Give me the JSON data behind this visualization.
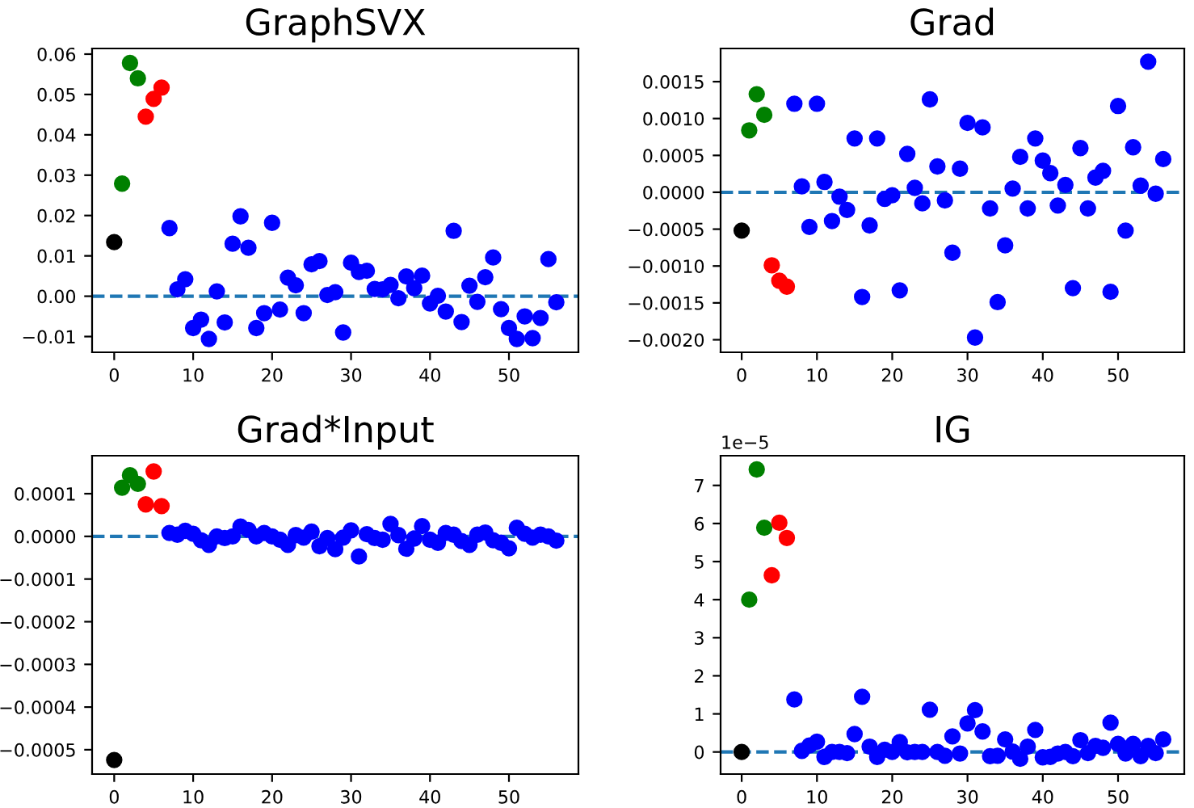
{
  "chart_data": [
    {
      "type": "scatter",
      "title": "GraphSVX",
      "marker": "circle",
      "grid": false,
      "xlim": [
        -2.8,
        58.8
      ],
      "ylim": [
        -0.0139,
        0.0614
      ],
      "xticks": [
        0,
        10,
        20,
        30,
        40,
        50
      ],
      "yticks": [
        {
          "value": -0.01,
          "label": "−0.01"
        },
        {
          "value": 0,
          "label": "0.00"
        },
        {
          "value": 0.01,
          "label": "0.01"
        },
        {
          "value": 0.02,
          "label": "0.02"
        },
        {
          "value": 0.03,
          "label": "0.03"
        },
        {
          "value": 0.04,
          "label": "0.04"
        },
        {
          "value": 0.05,
          "label": "0.05"
        },
        {
          "value": 0.06,
          "label": "0.06"
        }
      ],
      "ref_lines": [
        {
          "axis": "y",
          "value": 0,
          "color": "#1f77b4",
          "line_style": "dashed"
        }
      ],
      "series": [
        {
          "color": "#000000",
          "x": [
            0
          ],
          "values": [
            0.0134
          ]
        },
        {
          "color": "#008000",
          "x": [
            1,
            2,
            3
          ],
          "values": [
            0.0279,
            0.0578,
            0.054
          ]
        },
        {
          "color": "#ff0000",
          "x": [
            4,
            5,
            6
          ],
          "values": [
            0.0445,
            0.0489,
            0.0517
          ]
        },
        {
          "color": "#0000ff",
          "x": [
            7,
            8,
            9,
            10,
            11,
            12,
            13,
            14,
            15,
            16,
            17,
            18,
            19,
            20,
            21,
            22,
            23,
            24,
            25,
            26,
            27,
            28,
            29,
            30,
            31,
            32,
            33,
            34,
            35,
            36,
            37,
            38,
            39,
            40,
            41,
            42,
            43,
            44,
            45,
            46,
            47,
            48,
            49,
            50,
            51,
            52,
            53,
            54,
            55,
            56
          ],
          "values": [
            0.0169,
            0.0017,
            0.0042,
            -0.0079,
            -0.0058,
            -0.0106,
            0.0012,
            -0.0065,
            0.013,
            0.0198,
            0.012,
            -0.0079,
            -0.0042,
            0.0182,
            -0.0033,
            0.0046,
            0.0027,
            -0.0042,
            0.0079,
            0.0087,
            0.0003,
            0.001,
            -0.009,
            0.0083,
            0.006,
            0.0063,
            0.0018,
            0.0017,
            0.0028,
            -0.0005,
            0.0049,
            0.002,
            0.0051,
            -0.0018,
            0.0001,
            -0.0038,
            0.0162,
            -0.0064,
            0.0026,
            -0.0014,
            0.0047,
            0.0096,
            -0.0032,
            -0.0079,
            -0.0106,
            -0.005,
            -0.0104,
            -0.0054,
            0.0092,
            -0.0015
          ]
        }
      ]
    },
    {
      "type": "scatter",
      "title": "Grad",
      "marker": "circle",
      "grid": false,
      "xlim": [
        -2.8,
        58.8
      ],
      "ylim": [
        -0.00217,
        0.00195
      ],
      "xticks": [
        0,
        10,
        20,
        30,
        40,
        50
      ],
      "yticks": [
        {
          "value": -0.002,
          "label": "−0.0020"
        },
        {
          "value": -0.0015,
          "label": "−0.0015"
        },
        {
          "value": -0.001,
          "label": "−0.0010"
        },
        {
          "value": -0.0005,
          "label": "−0.0005"
        },
        {
          "value": 0,
          "label": "0.0000"
        },
        {
          "value": 0.0005,
          "label": "0.0005"
        },
        {
          "value": 0.001,
          "label": "0.0010"
        },
        {
          "value": 0.0015,
          "label": "0.0015"
        }
      ],
      "ref_lines": [
        {
          "axis": "y",
          "value": 0,
          "color": "#1f77b4",
          "line_style": "dashed"
        }
      ],
      "series": [
        {
          "color": "#000000",
          "x": [
            0
          ],
          "values": [
            -0.00052
          ]
        },
        {
          "color": "#008000",
          "x": [
            1,
            2,
            3
          ],
          "values": [
            0.00084,
            0.00133,
            0.00105
          ]
        },
        {
          "color": "#ff0000",
          "x": [
            4,
            5,
            6
          ],
          "values": [
            -0.00099,
            -0.0012,
            -0.00128
          ]
        },
        {
          "color": "#0000ff",
          "x": [
            7,
            8,
            9,
            10,
            11,
            12,
            13,
            14,
            15,
            16,
            17,
            18,
            19,
            20,
            21,
            22,
            23,
            24,
            25,
            26,
            27,
            28,
            29,
            30,
            31,
            32,
            33,
            34,
            35,
            36,
            37,
            38,
            39,
            40,
            41,
            42,
            43,
            44,
            45,
            46,
            47,
            48,
            49,
            50,
            51,
            52,
            53,
            54,
            55,
            56
          ],
          "values": [
            0.0012,
            8e-05,
            -0.00047,
            0.0012,
            0.00014,
            -0.00039,
            -6e-05,
            -0.00024,
            0.00073,
            -0.00142,
            -0.00045,
            0.00073,
            -9e-05,
            -4e-05,
            -0.00133,
            0.00052,
            6e-05,
            -0.00015,
            0.00126,
            0.00035,
            -0.00011,
            -0.00082,
            0.00032,
            0.00094,
            -0.00197,
            0.00088,
            -0.00022,
            -0.00149,
            -0.00072,
            5e-05,
            0.00048,
            -0.00022,
            0.00073,
            0.00043,
            0.00026,
            -0.00018,
            0.0001,
            -0.0013,
            0.0006,
            -0.00022,
            0.0002,
            0.00029,
            -0.00135,
            0.00117,
            -0.00052,
            0.00061,
            9e-05,
            0.00177,
            -2e-05,
            0.00045
          ]
        }
      ]
    },
    {
      "type": "scatter",
      "title": "Grad*Input",
      "marker": "circle",
      "grid": false,
      "xlim": [
        -2.8,
        58.8
      ],
      "ylim": [
        -0.000557,
        0.000189
      ],
      "xticks": [
        0,
        10,
        20,
        30,
        40,
        50
      ],
      "yticks": [
        {
          "value": -0.0005,
          "label": "−0.0005"
        },
        {
          "value": -0.0004,
          "label": "−0.0004"
        },
        {
          "value": -0.0003,
          "label": "−0.0003"
        },
        {
          "value": -0.0002,
          "label": "−0.0002"
        },
        {
          "value": -0.0001,
          "label": "−0.0001"
        },
        {
          "value": 0,
          "label": "0.0000"
        },
        {
          "value": 0.0001,
          "label": "0.0001"
        }
      ],
      "ref_lines": [
        {
          "axis": "y",
          "value": 0,
          "color": "#1f77b4",
          "line_style": "dashed"
        }
      ],
      "series": [
        {
          "color": "#000000",
          "x": [
            0
          ],
          "values": [
            -0.000524
          ]
        },
        {
          "color": "#008000",
          "x": [
            1,
            2,
            3
          ],
          "values": [
            0.000114,
            0.000143,
            0.000123
          ]
        },
        {
          "color": "#ff0000",
          "x": [
            4,
            5,
            6
          ],
          "values": [
            7.5e-05,
            0.000152,
            7.1e-05
          ]
        },
        {
          "color": "#0000ff",
          "x": [
            7,
            8,
            9,
            10,
            11,
            12,
            13,
            14,
            15,
            16,
            17,
            18,
            19,
            20,
            21,
            22,
            23,
            24,
            25,
            26,
            27,
            28,
            29,
            30,
            31,
            32,
            33,
            34,
            35,
            36,
            37,
            38,
            39,
            40,
            41,
            42,
            43,
            44,
            45,
            46,
            47,
            48,
            49,
            50,
            51,
            52,
            53,
            54,
            55,
            56
          ],
          "values": [
            8e-06,
            4e-06,
            1.3e-05,
            6e-06,
            -9e-06,
            -2e-05,
            0,
            -4e-06,
            0,
            2.3e-05,
            1.5e-05,
            0,
            8e-06,
            0,
            -8e-06,
            -2e-05,
            3e-06,
            -3e-06,
            1.1e-05,
            -2.3e-05,
            -4e-06,
            -3e-05,
            -3e-06,
            1.4e-05,
            -4.7e-05,
            5e-06,
            -4e-06,
            -8e-06,
            2.9e-05,
            3e-06,
            -2.9e-05,
            -5e-06,
            2.4e-05,
            -8e-06,
            -1.5e-05,
            8e-06,
            4e-06,
            -1.1e-05,
            -2e-05,
            4e-06,
            9e-06,
            -9e-06,
            -1.5e-05,
            -2.8e-05,
            2e-05,
            6e-06,
            -3e-06,
            4e-06,
            0,
            -1e-05
          ]
        }
      ]
    },
    {
      "type": "scatter",
      "title": "IG",
      "marker": "circle",
      "grid": false,
      "xlim": [
        -2.8,
        58.8
      ],
      "ylim": [
        -0.58,
        7.78
      ],
      "xticks": [
        0,
        10,
        20,
        30,
        40,
        50
      ],
      "yticks": [
        0,
        1,
        2,
        3,
        4,
        5,
        6,
        7
      ],
      "annotations": [
        "1e−5"
      ],
      "ref_lines": [
        {
          "axis": "y",
          "value": 0,
          "color": "#1f77b4",
          "line_style": "dashed"
        }
      ],
      "series": [
        {
          "color": "#000000",
          "x": [
            0
          ],
          "values": [
            0
          ]
        },
        {
          "color": "#008000",
          "x": [
            1,
            2,
            3
          ],
          "values": [
            4.0,
            7.42,
            5.89
          ]
        },
        {
          "color": "#ff0000",
          "x": [
            4,
            5,
            6
          ],
          "values": [
            4.64,
            6.02,
            5.62
          ]
        },
        {
          "color": "#0000ff",
          "x": [
            7,
            8,
            9,
            10,
            11,
            12,
            13,
            14,
            15,
            16,
            17,
            18,
            19,
            20,
            21,
            22,
            23,
            24,
            25,
            26,
            27,
            28,
            29,
            30,
            31,
            32,
            33,
            34,
            35,
            36,
            37,
            38,
            39,
            40,
            41,
            42,
            43,
            44,
            45,
            46,
            47,
            48,
            49,
            50,
            51,
            52,
            53,
            54,
            55,
            56
          ],
          "values": [
            1.38,
            0.03,
            0.17,
            0.27,
            -0.13,
            0,
            0,
            -0.03,
            0.47,
            1.45,
            0.14,
            -0.13,
            0.06,
            0,
            0.26,
            -0.01,
            0,
            0,
            1.11,
            0,
            -0.1,
            0.41,
            -0.04,
            0.75,
            1.1,
            0.54,
            -0.11,
            -0.1,
            0.33,
            0.01,
            -0.18,
            0.14,
            0.58,
            -0.14,
            -0.13,
            -0.04,
            0,
            -0.11,
            0.31,
            -0.03,
            0.16,
            0.11,
            0.77,
            0.21,
            -0.04,
            0.21,
            -0.11,
            0.16,
            -0.03,
            0.33
          ]
        }
      ]
    }
  ]
}
